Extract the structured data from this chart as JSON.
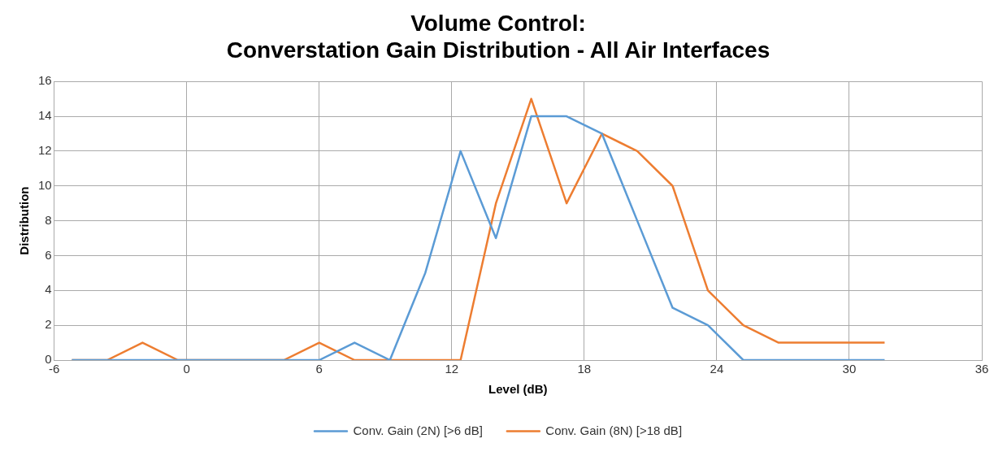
{
  "chart_data": {
    "type": "line",
    "title": [
      "Volume Control:",
      "Converstation Gain Distribution - All Air Interfaces"
    ],
    "xlabel": "Level (dB)",
    "ylabel": "Distribution",
    "x": [
      -5.2,
      -3.6,
      -2.0,
      -0.4,
      1.2,
      2.8,
      4.4,
      6.0,
      7.6,
      9.2,
      10.8,
      12.4,
      14.0,
      15.6,
      17.2,
      18.8,
      20.4,
      22.0,
      23.6,
      25.2,
      26.8,
      28.4,
      30.0,
      31.6
    ],
    "series": [
      {
        "name": "Conv. Gain (2N) [>6 dB]",
        "color": "#5b9bd5",
        "values": [
          0,
          0,
          0,
          0,
          0,
          0,
          0,
          0,
          1,
          0,
          5,
          12,
          7,
          14,
          14,
          13,
          8,
          3,
          2,
          0,
          0,
          0,
          0,
          0
        ]
      },
      {
        "name": "Conv. Gain (8N) [>18 dB]",
        "color": "#ed7d31",
        "values": [
          0,
          0,
          1,
          0,
          0,
          0,
          0,
          1,
          0,
          0,
          0,
          0,
          9,
          15,
          9,
          13,
          12,
          10,
          4,
          2,
          1,
          1,
          1,
          1
        ]
      }
    ],
    "xlim": [
      -6,
      36
    ],
    "xticks": [
      -6,
      0,
      6,
      12,
      18,
      24,
      30,
      36
    ],
    "ylim": [
      0,
      16
    ],
    "yticks": [
      0,
      2,
      4,
      6,
      8,
      10,
      12,
      14,
      16
    ],
    "grid": true,
    "legend": "bottom",
    "marker": "none",
    "line_style": "solid"
  }
}
